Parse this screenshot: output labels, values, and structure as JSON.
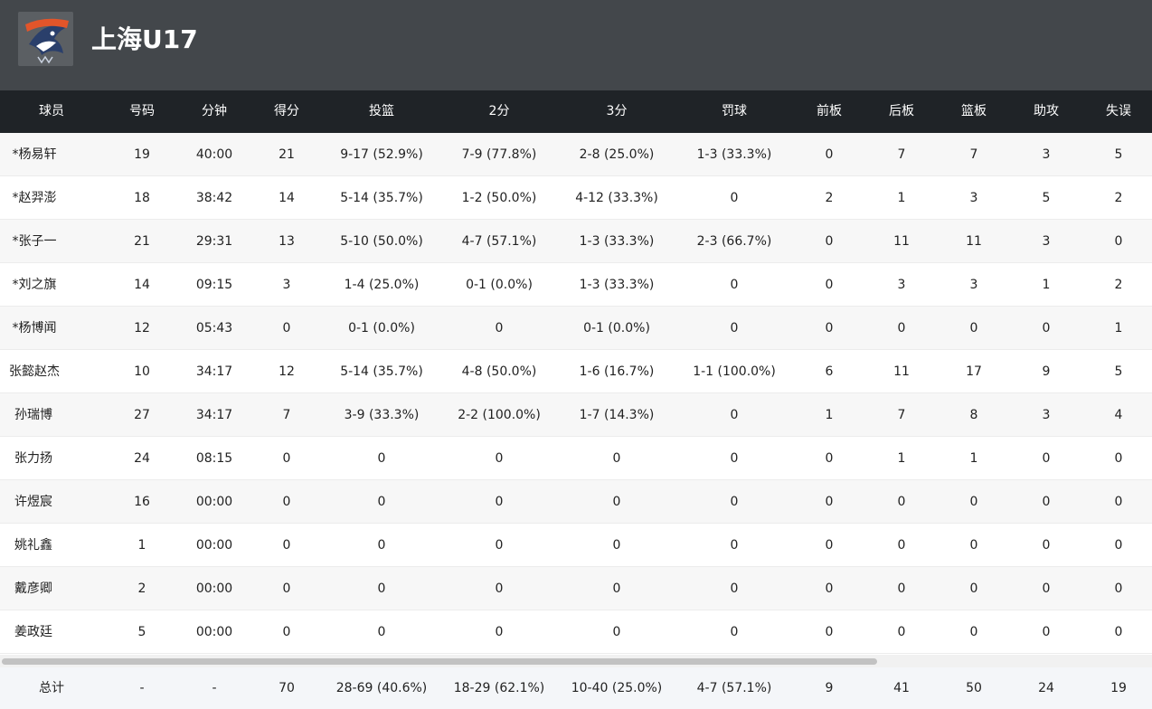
{
  "team": {
    "name": "上海U17",
    "logo_icon": "shark-logo-icon"
  },
  "columns": [
    "球员",
    "号码",
    "分钟",
    "得分",
    "投篮",
    "2分",
    "3分",
    "罚球",
    "前板",
    "后板",
    "篮板",
    "助攻",
    "失误"
  ],
  "players": [
    [
      "*杨易轩",
      "19",
      "40:00",
      "21",
      "9-17 (52.9%)",
      "7-9 (77.8%)",
      "2-8 (25.0%)",
      "1-3 (33.3%)",
      "0",
      "7",
      "7",
      "3",
      "5"
    ],
    [
      "*赵羿澎",
      "18",
      "38:42",
      "14",
      "5-14 (35.7%)",
      "1-2 (50.0%)",
      "4-12 (33.3%)",
      "0",
      "2",
      "1",
      "3",
      "5",
      "2"
    ],
    [
      "*张子一",
      "21",
      "29:31",
      "13",
      "5-10 (50.0%)",
      "4-7 (57.1%)",
      "1-3 (33.3%)",
      "2-3 (66.7%)",
      "0",
      "11",
      "11",
      "3",
      "0"
    ],
    [
      "*刘之旗",
      "14",
      "09:15",
      "3",
      "1-4 (25.0%)",
      "0-1 (0.0%)",
      "1-3 (33.3%)",
      "0",
      "0",
      "3",
      "3",
      "1",
      "2"
    ],
    [
      "*杨博闻",
      "12",
      "05:43",
      "0",
      "0-1 (0.0%)",
      "0",
      "0-1 (0.0%)",
      "0",
      "0",
      "0",
      "0",
      "0",
      "1"
    ],
    [
      "张懿赵杰",
      "10",
      "34:17",
      "12",
      "5-14 (35.7%)",
      "4-8 (50.0%)",
      "1-6 (16.7%)",
      "1-1 (100.0%)",
      "6",
      "11",
      "17",
      "9",
      "5"
    ],
    [
      "孙瑞博",
      "27",
      "34:17",
      "7",
      "3-9 (33.3%)",
      "2-2 (100.0%)",
      "1-7 (14.3%)",
      "0",
      "1",
      "7",
      "8",
      "3",
      "4"
    ],
    [
      "张力扬",
      "24",
      "08:15",
      "0",
      "0",
      "0",
      "0",
      "0",
      "0",
      "1",
      "1",
      "0",
      "0"
    ],
    [
      "许煜宸",
      "16",
      "00:00",
      "0",
      "0",
      "0",
      "0",
      "0",
      "0",
      "0",
      "0",
      "0",
      "0"
    ],
    [
      "姚礼鑫",
      "1",
      "00:00",
      "0",
      "0",
      "0",
      "0",
      "0",
      "0",
      "0",
      "0",
      "0",
      "0"
    ],
    [
      "戴彦卿",
      "2",
      "00:00",
      "0",
      "0",
      "0",
      "0",
      "0",
      "0",
      "0",
      "0",
      "0",
      "0"
    ],
    [
      "姜政廷",
      "5",
      "00:00",
      "0",
      "0",
      "0",
      "0",
      "0",
      "0",
      "0",
      "0",
      "0",
      "0"
    ]
  ],
  "totals": [
    "总计",
    "-",
    "-",
    "70",
    "28-69 (40.6%)",
    "18-29 (62.1%)",
    "10-40 (25.0%)",
    "4-7 (57.1%)",
    "9",
    "41",
    "50",
    "24",
    "19"
  ],
  "colors": {
    "header_bg": "#43474b",
    "table_header_bg": "#1f2327",
    "row_alt_bg": "#f7f7f7",
    "totals_bg": "#f4f6f9"
  }
}
